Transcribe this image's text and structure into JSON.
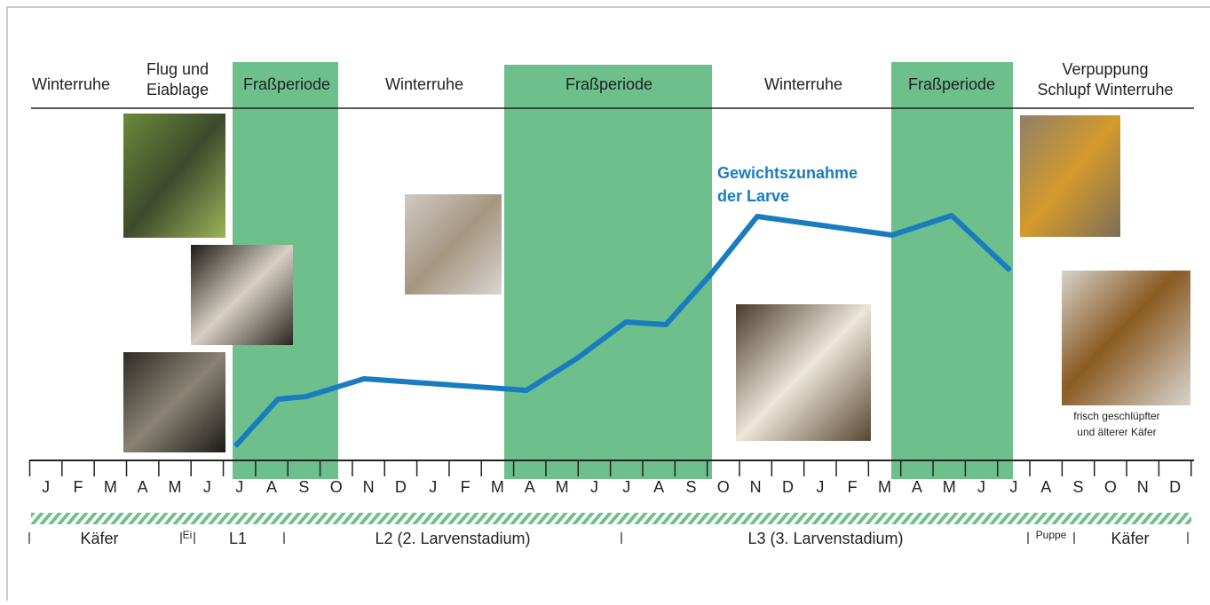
{
  "phases": [
    {
      "lines": [
        "Winterruhe"
      ]
    },
    {
      "lines": [
        "Flug und",
        "Eiablage"
      ]
    },
    {
      "lines": [
        "Fraßperiode"
      ]
    },
    {
      "lines": [
        "Winterruhe"
      ]
    },
    {
      "lines": [
        "Fraßperiode"
      ]
    },
    {
      "lines": [
        "Winterruhe"
      ]
    },
    {
      "lines": [
        "Fraßperiode"
      ]
    },
    {
      "lines": [
        "Verpuppung",
        "Schlupf Winterruhe"
      ]
    }
  ],
  "months": [
    "J",
    "F",
    "M",
    "A",
    "M",
    "J",
    "J",
    "A",
    "S",
    "O",
    "N",
    "D",
    "J",
    "F",
    "M",
    "A",
    "M",
    "J",
    "J",
    "A",
    "S",
    "O",
    "N",
    "D",
    "J",
    "F",
    "M",
    "A",
    "M",
    "J",
    "J",
    "A",
    "S",
    "O",
    "N",
    "D"
  ],
  "stages": [
    "Käfer",
    "Ei",
    "L1",
    "L2 (2. Larvenstadium)",
    "L3 (3. Larvenstadium)",
    "Puppe",
    "Käfer"
  ],
  "annotation": {
    "lines": [
      "Gewichtszunahme",
      "der Larve"
    ]
  },
  "caption": {
    "lines": [
      "frisch geschlüpfter",
      "und älterer Käfer"
    ]
  }
}
